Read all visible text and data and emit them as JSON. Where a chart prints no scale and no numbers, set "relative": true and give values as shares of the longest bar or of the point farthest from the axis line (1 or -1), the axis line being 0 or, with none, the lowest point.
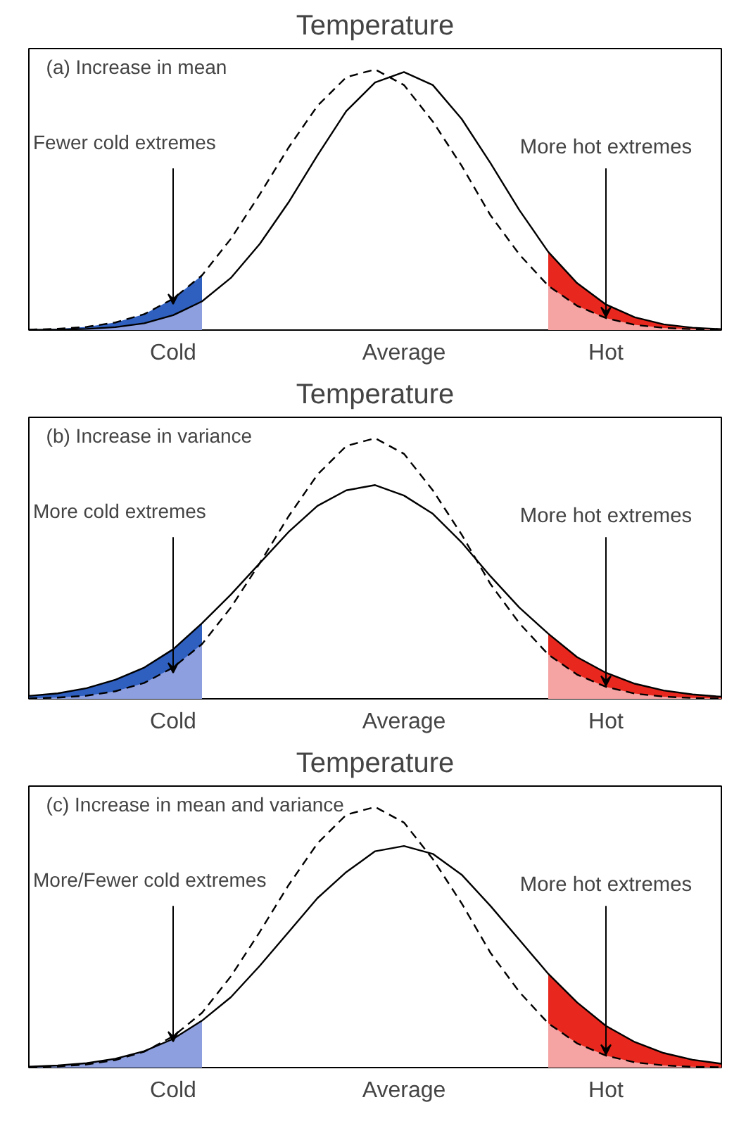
{
  "chart_data": [
    {
      "type": "line",
      "relative": true,
      "title": "Temperature",
      "categories": [
        null,
        null,
        null,
        null,
        null,
        "Cold",
        null,
        null,
        null,
        null,
        null,
        null,
        null,
        "Average",
        null,
        null,
        null,
        null,
        null,
        null,
        "Hot",
        null,
        null,
        null,
        null
      ],
      "annotations": [
        "(a) Increase in mean",
        "Fewer cold extremes",
        "More hot extremes"
      ],
      "series": [
        {
          "type": "area",
          "color": "#2f5fbf",
          "values": [
            0.0017,
            0.0047,
            0.012,
            0.029,
            0.061,
            0.12,
            0.21,
            null,
            null,
            null,
            null,
            null,
            null,
            null,
            null,
            null,
            null,
            null,
            null,
            null,
            null,
            null,
            null,
            null,
            null
          ]
        },
        {
          "type": "area",
          "color": "#8e9fe0",
          "values": [
            0.0005,
            0.0015,
            0.0043,
            0.011,
            0.026,
            0.057,
            0.11,
            null,
            null,
            null,
            null,
            null,
            null,
            null,
            null,
            null,
            null,
            null,
            null,
            null,
            null,
            null,
            null,
            null,
            null
          ]
        },
        {
          "type": "area",
          "color": "#e8281e",
          "values": [
            null,
            null,
            null,
            null,
            null,
            null,
            null,
            null,
            null,
            null,
            null,
            null,
            null,
            null,
            null,
            null,
            null,
            null,
            0.3,
            0.18,
            0.098,
            0.049,
            0.022,
            0.0091,
            0.0035
          ]
        },
        {
          "type": "area",
          "color": "#f5a3a3",
          "values": [
            null,
            null,
            null,
            null,
            null,
            null,
            null,
            null,
            null,
            null,
            null,
            null,
            null,
            null,
            null,
            null,
            null,
            null,
            0.17,
            0.093,
            0.046,
            0.02,
            0.0084,
            0.0032,
            0.0011
          ]
        },
        {
          "type": "line",
          "color": "#000000",
          "line_style": "dashed",
          "values": [
            0.0017,
            0.0047,
            0.012,
            0.029,
            0.061,
            0.12,
            0.21,
            0.35,
            0.52,
            0.7,
            0.86,
            0.97,
            1.0,
            0.94,
            0.8,
            0.63,
            0.44,
            0.29,
            0.17,
            0.093,
            0.046,
            0.02,
            0.0084,
            0.0032,
            0.0011
          ]
        },
        {
          "type": "line",
          "color": "#000000",
          "line_style": "solid",
          "values": [
            0.0005,
            0.0015,
            0.0043,
            0.011,
            0.026,
            0.057,
            0.11,
            0.2,
            0.33,
            0.49,
            0.67,
            0.84,
            0.95,
            0.99,
            0.94,
            0.81,
            0.64,
            0.46,
            0.3,
            0.18,
            0.098,
            0.049,
            0.022,
            0.0091,
            0.0035
          ]
        }
      ]
    },
    {
      "type": "line",
      "relative": true,
      "title": "Temperature",
      "categories": [
        null,
        null,
        null,
        null,
        null,
        "Cold",
        null,
        null,
        null,
        null,
        null,
        null,
        null,
        "Average",
        null,
        null,
        null,
        null,
        null,
        null,
        "Hot",
        null,
        null,
        null,
        null
      ],
      "annotations": [
        "(b) Increase in variance",
        "More cold extremes",
        "More hot extremes"
      ],
      "series": [
        {
          "type": "area",
          "color": "#2f5fbf",
          "values": [
            0.011,
            0.021,
            0.041,
            0.073,
            0.12,
            0.19,
            0.29,
            null,
            null,
            null,
            null,
            null,
            null,
            null,
            null,
            null,
            null,
            null,
            null,
            null,
            null,
            null,
            null,
            null,
            null
          ]
        },
        {
          "type": "area",
          "color": "#8e9fe0",
          "values": [
            0.0017,
            0.0047,
            0.012,
            0.029,
            0.061,
            0.12,
            0.21,
            null,
            null,
            null,
            null,
            null,
            null,
            null,
            null,
            null,
            null,
            null,
            null,
            null,
            null,
            null,
            null,
            null,
            null
          ]
        },
        {
          "type": "area",
          "color": "#e8281e",
          "values": [
            null,
            null,
            null,
            null,
            null,
            null,
            null,
            null,
            null,
            null,
            null,
            null,
            null,
            null,
            null,
            null,
            null,
            null,
            0.25,
            0.16,
            0.1,
            0.058,
            0.032,
            0.017,
            0.0079
          ]
        },
        {
          "type": "area",
          "color": "#f5a3a3",
          "values": [
            null,
            null,
            null,
            null,
            null,
            null,
            null,
            null,
            null,
            null,
            null,
            null,
            null,
            null,
            null,
            null,
            null,
            null,
            0.17,
            0.093,
            0.046,
            0.02,
            0.0084,
            0.0032,
            0.0011
          ]
        },
        {
          "type": "line",
          "color": "#000000",
          "line_style": "dashed",
          "values": [
            0.0017,
            0.0047,
            0.012,
            0.029,
            0.061,
            0.12,
            0.21,
            0.35,
            0.52,
            0.7,
            0.86,
            0.97,
            1.0,
            0.94,
            0.8,
            0.63,
            0.44,
            0.29,
            0.17,
            0.093,
            0.046,
            0.02,
            0.0084,
            0.0032,
            0.0011
          ]
        },
        {
          "type": "line",
          "color": "#000000",
          "line_style": "solid",
          "values": [
            0.011,
            0.021,
            0.041,
            0.073,
            0.12,
            0.19,
            0.29,
            0.4,
            0.52,
            0.64,
            0.74,
            0.8,
            0.82,
            0.78,
            0.71,
            0.6,
            0.47,
            0.35,
            0.25,
            0.16,
            0.1,
            0.058,
            0.032,
            0.017,
            0.0079
          ]
        }
      ]
    },
    {
      "type": "line",
      "relative": true,
      "title": "Temperature",
      "categories": [
        null,
        null,
        null,
        null,
        null,
        "Cold",
        null,
        null,
        null,
        null,
        null,
        null,
        null,
        "Average",
        null,
        null,
        null,
        null,
        null,
        null,
        "Hot",
        null,
        null,
        null,
        null
      ],
      "annotations": [
        "(c) Increase in mean and variance",
        "More/Fewer cold extremes",
        "More hot extremes"
      ],
      "series": [
        {
          "type": "area",
          "color": "#8e9fe0",
          "values": [
            0.0036,
            0.0081,
            0.017,
            0.034,
            0.063,
            0.11,
            0.18,
            null,
            null,
            null,
            null,
            null,
            null,
            null,
            null,
            null,
            null,
            null,
            null,
            null,
            null,
            null,
            null,
            null,
            null
          ]
        },
        {
          "type": "area",
          "color": "#e8281e",
          "values": [
            null,
            null,
            null,
            null,
            null,
            null,
            null,
            null,
            null,
            null,
            null,
            null,
            null,
            null,
            null,
            null,
            null,
            null,
            0.36,
            0.25,
            0.16,
            0.098,
            0.056,
            0.03,
            0.015
          ]
        },
        {
          "type": "area",
          "color": "#f5a3a3",
          "values": [
            null,
            null,
            null,
            null,
            null,
            null,
            null,
            null,
            null,
            null,
            null,
            null,
            null,
            null,
            null,
            null,
            null,
            null,
            0.17,
            0.093,
            0.046,
            0.02,
            0.0084,
            0.0032,
            0.0011
          ]
        },
        {
          "type": "line",
          "color": "#000000",
          "line_style": "dashed",
          "values": [
            0.0017,
            0.0047,
            0.012,
            0.029,
            0.061,
            0.12,
            0.21,
            0.35,
            0.52,
            0.7,
            0.86,
            0.97,
            1.0,
            0.94,
            0.8,
            0.63,
            0.44,
            0.29,
            0.17,
            0.093,
            0.046,
            0.02,
            0.0084,
            0.0032,
            0.0011
          ]
        },
        {
          "type": "line",
          "color": "#000000",
          "line_style": "solid",
          "values": [
            0.0036,
            0.0081,
            0.017,
            0.034,
            0.063,
            0.11,
            0.18,
            0.27,
            0.39,
            0.52,
            0.65,
            0.75,
            0.83,
            0.85,
            0.82,
            0.74,
            0.62,
            0.49,
            0.36,
            0.25,
            0.16,
            0.098,
            0.056,
            0.03,
            0.015
          ]
        }
      ]
    }
  ]
}
